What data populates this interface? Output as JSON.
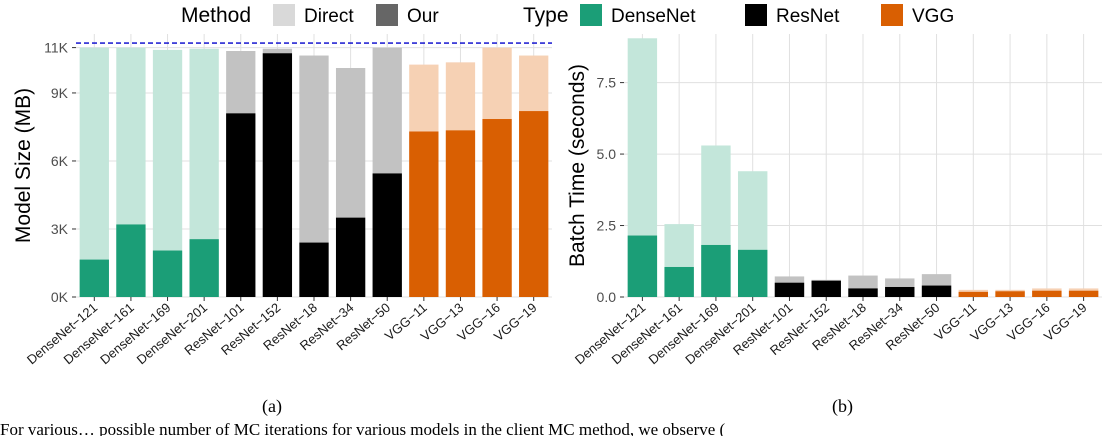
{
  "legend": {
    "method_title": "Method",
    "method_items": [
      {
        "label": "Direct",
        "color": "#d9d9d9"
      },
      {
        "label": "Our",
        "color": "#666666"
      }
    ],
    "type_title": "Type",
    "type_items": [
      {
        "label": "DenseNet",
        "color": "#1b9e77"
      },
      {
        "label": "ResNet",
        "color": "#000000"
      },
      {
        "label": "VGG",
        "color": "#d95f02"
      }
    ]
  },
  "captions": {
    "a": "(a)",
    "b": "(b)"
  },
  "footer_text": "For various… possible number of MC iterations for various models in the client MC method, we observe (",
  "chart_data": [
    {
      "type": "bar",
      "panel": "a",
      "ylabel": "Model Size (MB)",
      "ylim": [
        0,
        11600
      ],
      "yticks": [
        0,
        3000,
        6000,
        9000,
        11000
      ],
      "ytick_labels": [
        "0K",
        "3K",
        "6K",
        "9K",
        "11K"
      ],
      "reference_line": {
        "value": 11200,
        "color": "#0000cc",
        "style": "dashed"
      },
      "categories": [
        "DenseNet−121",
        "DenseNet−161",
        "DenseNet−169",
        "DenseNet−201",
        "ResNet−101",
        "ResNet−152",
        "ResNet−18",
        "ResNet−34",
        "ResNet−50",
        "VGG−11",
        "VGG−13",
        "VGG−16",
        "VGG−19"
      ],
      "category_type": [
        "DenseNet",
        "DenseNet",
        "DenseNet",
        "DenseNet",
        "ResNet",
        "ResNet",
        "ResNet",
        "ResNet",
        "ResNet",
        "VGG",
        "VGG",
        "VGG",
        "VGG"
      ],
      "series": [
        {
          "name": "Direct",
          "values": [
            11000,
            11000,
            10900,
            10950,
            10850,
            10950,
            10650,
            10100,
            11000,
            10250,
            10350,
            11000,
            10650
          ]
        },
        {
          "name": "Our",
          "values": [
            1650,
            3200,
            2050,
            2550,
            8100,
            10750,
            2400,
            3500,
            5450,
            7300,
            7350,
            7850,
            8200
          ]
        }
      ],
      "grid": true
    },
    {
      "type": "bar",
      "panel": "b",
      "ylabel": "Batch Time (seconds)",
      "ylim": [
        0,
        9.2
      ],
      "yticks": [
        0,
        2.5,
        5.0,
        7.5
      ],
      "ytick_labels": [
        "0.0",
        "2.5",
        "5.0",
        "7.5"
      ],
      "categories": [
        "DenseNet−121",
        "DenseNet−161",
        "DenseNet−169",
        "DenseNet−201",
        "ResNet−101",
        "ResNet−152",
        "ResNet−18",
        "ResNet−34",
        "ResNet−50",
        "VGG−11",
        "VGG−13",
        "VGG−16",
        "VGG−19"
      ],
      "category_type": [
        "DenseNet",
        "DenseNet",
        "DenseNet",
        "DenseNet",
        "ResNet",
        "ResNet",
        "ResNet",
        "ResNet",
        "ResNet",
        "VGG",
        "VGG",
        "VGG",
        "VGG"
      ],
      "series": [
        {
          "name": "Direct",
          "values": [
            9.05,
            2.55,
            5.3,
            4.4,
            0.72,
            0.6,
            0.75,
            0.65,
            0.8,
            0.25,
            0.25,
            0.3,
            0.3
          ]
        },
        {
          "name": "Our",
          "values": [
            2.15,
            1.05,
            1.82,
            1.65,
            0.5,
            0.57,
            0.3,
            0.35,
            0.4,
            0.18,
            0.2,
            0.22,
            0.22
          ]
        }
      ],
      "grid": true
    }
  ]
}
